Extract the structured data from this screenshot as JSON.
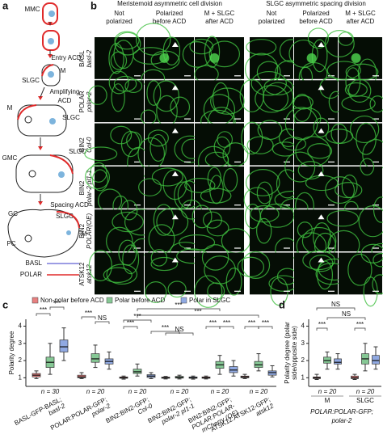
{
  "panel_a": {
    "label": "a",
    "texts": [
      "MMC",
      "Entry ACD",
      "M",
      "SLGC",
      "Amplifying",
      "ACD",
      "M",
      "SLGC",
      "GMC",
      "SLGC",
      "Spacing ACD",
      "GC",
      "SLGC",
      "PC",
      "M"
    ],
    "legend": [
      {
        "name": "BASL",
        "color": "#7b7bdc"
      },
      {
        "name": "POLAR",
        "color": "#e02a2a"
      }
    ]
  },
  "panel_b": {
    "label": "b",
    "groups": [
      "Meristemoid asymmetric cell division",
      "SLGC asymmetric spacing division"
    ],
    "columns": [
      [
        "Not",
        "polarized"
      ],
      [
        "Polarized",
        "before ACD"
      ],
      [
        "M + SLGC",
        "after ACD"
      ],
      [
        "Not",
        "polarized"
      ],
      [
        "Polarized",
        "before ACD"
      ],
      [
        "M + SLGC",
        "after ACD"
      ]
    ],
    "rows": [
      [
        "BASL",
        "basl-2"
      ],
      [
        "POLAR",
        "polar-2"
      ],
      [
        "BIN2",
        "Col-0"
      ],
      [
        "BIN2",
        "polar-2 pl1-1"
      ],
      [
        "BIN2",
        "POLAR(OE)"
      ],
      [
        "ATSK12",
        "atsk12"
      ]
    ]
  },
  "chart_data": [
    {
      "type": "box",
      "label": "c",
      "ylabel": [
        "Polarity degree"
      ],
      "ylim": [
        0.5,
        4.4
      ],
      "yticks": [
        1,
        2,
        3,
        4
      ],
      "categories": [
        [
          "BASL-GFP-BASL;",
          "basl-2"
        ],
        [
          "POLAR:POLAR-GFP;",
          "polar-2"
        ],
        [
          "BIN2:BIN2-GFP;",
          "Col-0"
        ],
        [
          "BIN2:BIN2-GFP;",
          "polar-2 pl1-1"
        ],
        [
          "BIN2:BIN2-GFP;",
          "POLAR:POLAR-",
          "mCherry (OE)"
        ],
        [
          "ATSK12:ATSK12-GFP;",
          "atsk12"
        ]
      ],
      "n_labels": [
        "n = 30",
        "n = 20",
        "n = 20",
        "n = 20",
        "n = 20",
        "n = 20"
      ],
      "series": [
        {
          "name": "Non-polar before ACD",
          "color": "#e88080",
          "values": [
            {
              "min": 0.95,
              "q1": 1.05,
              "median": 1.15,
              "q3": 1.25,
              "max": 1.4
            },
            {
              "min": 0.95,
              "q1": 1.0,
              "median": 1.05,
              "q3": 1.15,
              "max": 1.3
            },
            {
              "min": 0.92,
              "q1": 0.97,
              "median": 1.0,
              "q3": 1.05,
              "max": 1.1
            },
            {
              "min": 0.93,
              "q1": 0.97,
              "median": 1.0,
              "q3": 1.04,
              "max": 1.08
            },
            {
              "min": 0.93,
              "q1": 0.97,
              "median": 1.0,
              "q3": 1.05,
              "max": 1.1
            },
            {
              "min": 0.95,
              "q1": 1.0,
              "median": 1.05,
              "q3": 1.1,
              "max": 1.2
            }
          ]
        },
        {
          "name": "Polar before ACD",
          "color": "#86c895",
          "values": [
            {
              "min": 1.2,
              "q1": 1.6,
              "median": 1.9,
              "q3": 2.2,
              "max": 3.0
            },
            {
              "min": 1.6,
              "q1": 1.9,
              "median": 2.1,
              "q3": 2.4,
              "max": 2.9
            },
            {
              "min": 1.1,
              "q1": 1.25,
              "median": 1.35,
              "q3": 1.5,
              "max": 1.8
            },
            {
              "min": 0.93,
              "q1": 0.98,
              "median": 1.02,
              "q3": 1.08,
              "max": 1.15
            },
            {
              "min": 1.2,
              "q1": 1.55,
              "median": 1.75,
              "q3": 1.95,
              "max": 2.3
            },
            {
              "min": 1.4,
              "q1": 1.6,
              "median": 1.75,
              "q3": 1.95,
              "max": 2.4
            }
          ]
        },
        {
          "name": "Polar in SLGC",
          "color": "#90a9e2",
          "values": [
            {
              "min": 2.0,
              "q1": 2.5,
              "median": 2.8,
              "q3": 3.2,
              "max": 3.9
            },
            {
              "min": 1.5,
              "q1": 1.8,
              "median": 1.95,
              "q3": 2.1,
              "max": 2.5
            },
            {
              "min": 0.95,
              "q1": 1.02,
              "median": 1.1,
              "q3": 1.18,
              "max": 1.3
            },
            {
              "min": 0.92,
              "q1": 0.97,
              "median": 1.0,
              "q3": 1.05,
              "max": 1.1
            },
            {
              "min": 1.1,
              "q1": 1.3,
              "median": 1.45,
              "q3": 1.65,
              "max": 2.0
            },
            {
              "min": 1.05,
              "q1": 1.15,
              "median": 1.3,
              "q3": 1.4,
              "max": 1.7
            }
          ]
        }
      ],
      "annotations": [
        "***",
        "***",
        "***",
        "NS",
        "***",
        "***",
        "***",
        "***",
        "***",
        "NS",
        "***",
        "***",
        "***",
        "***"
      ]
    },
    {
      "type": "box",
      "label": "d",
      "ylabel": [
        "Polarity degree (polar",
        "side/opposite side)"
      ],
      "ylim": [
        0.5,
        4.4
      ],
      "yticks": [
        1,
        2,
        3,
        4
      ],
      "categories": [
        [
          "M"
        ],
        [
          "SLGC"
        ]
      ],
      "n_labels": [
        "n = 20",
        "n = 20"
      ],
      "xlabel": [
        "POLAR:POLAR-GFP;",
        "polar-2"
      ],
      "series": [
        {
          "color": "#e88080",
          "values": [
            {
              "min": 0.9,
              "q1": 0.95,
              "median": 1.0,
              "q3": 1.05,
              "max": 1.2
            },
            {
              "min": 0.9,
              "q1": 0.95,
              "median": 1.0,
              "q3": 1.1,
              "max": 1.2
            }
          ]
        },
        {
          "color": "#86c895",
          "values": [
            {
              "min": 1.5,
              "q1": 1.85,
              "median": 2.0,
              "q3": 2.2,
              "max": 2.5
            },
            {
              "min": 1.4,
              "q1": 1.8,
              "median": 2.1,
              "q3": 2.4,
              "max": 3.0
            }
          ]
        },
        {
          "color": "#90a9e2",
          "values": [
            {
              "min": 1.5,
              "q1": 1.8,
              "median": 1.9,
              "q3": 2.1,
              "max": 2.4
            },
            {
              "min": 1.5,
              "q1": 1.8,
              "median": 2.0,
              "q3": 2.3,
              "max": 2.8
            }
          ]
        }
      ],
      "annotations": [
        "NS",
        "NS",
        "***",
        "***"
      ]
    }
  ]
}
